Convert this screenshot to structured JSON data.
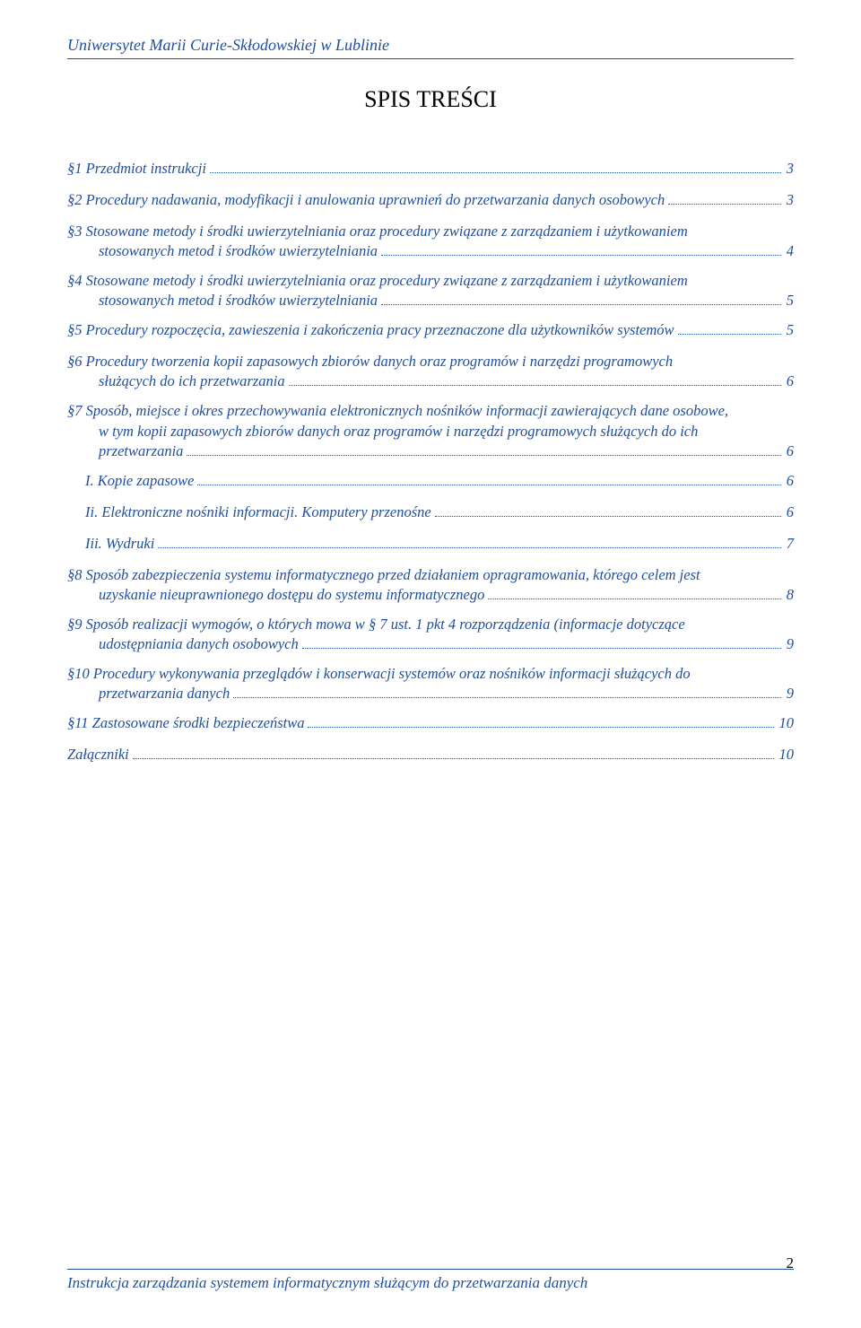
{
  "header": "Uniwersytet Marii Curie-Skłodowskiej w Lublinie",
  "title": "SPIS TREŚCI",
  "footer_text": "Instrukcja zarządzania systemem informatycznym służącym do przetwarzania danych",
  "page_number": "2",
  "colors": {
    "link": "#1f4e9c",
    "text": "#000000",
    "background": "#ffffff"
  },
  "toc": [
    {
      "level": 1,
      "text": "§1  Przedmiot instrukcji",
      "page": "3"
    },
    {
      "level": 1,
      "text": "§2  Procedury nadawania, modyfikacji i anulowania uprawnień do  przetwarzania danych osobowych",
      "page": "3"
    },
    {
      "level": 1,
      "multiline": true,
      "lines": [
        "§3  Stosowane metody i środki uwierzytelniania oraz procedury związane z zarządzaniem i użytkowaniem",
        "stosowanych metod i środków uwierzytelniania"
      ],
      "page": "4",
      "indent2": true
    },
    {
      "level": 1,
      "multiline": true,
      "lines": [
        "§4  Stosowane metody i środki uwierzytelniania oraz procedury związane z zarządzaniem i użytkowaniem",
        "stosowanych metod i środków uwierzytelniania"
      ],
      "page": "5",
      "indent2": true
    },
    {
      "level": 1,
      "text": "§5  Procedury rozpoczęcia, zawieszenia i zakończenia pracy przeznaczone dla użytkowników systemów",
      "page": "5"
    },
    {
      "level": 1,
      "multiline": true,
      "lines": [
        "§6  Procedury tworzenia kopii zapasowych zbiorów danych oraz programów i narzędzi programowych",
        "służących do ich przetwarzania"
      ],
      "page": "6",
      "indent2": true
    },
    {
      "level": 1,
      "multiline": true,
      "lines": [
        "§7  Sposób, miejsce i okres przechowywania elektronicznych nośników informacji zawierających dane osobowe,",
        "w tym kopii zapasowych zbiorów danych oraz programów i narzędzi programowych służących do ich",
        "przetwarzania"
      ],
      "page": "6",
      "indent2": true
    },
    {
      "level": 2,
      "text": "I.   Kopie zapasowe",
      "page": "6"
    },
    {
      "level": 2,
      "text": "Ii.   Elektroniczne nośniki informacji. Komputery przenośne",
      "page": "6"
    },
    {
      "level": 2,
      "text": "Iii.   Wydruki",
      "page": "7"
    },
    {
      "level": 1,
      "multiline": true,
      "lines": [
        "§8  Sposób zabezpieczenia systemu informatycznego przed działaniem opragramowania, którego celem jest",
        "uzyskanie nieuprawnionego dostępu do systemu informatycznego"
      ],
      "page": "8",
      "indent2": true
    },
    {
      "level": 1,
      "multiline": true,
      "lines": [
        "§9  Sposób realizacji wymogów, o których mowa w § 7 ust. 1 pkt 4 rozporządzenia (informacje dotyczące",
        "udostępniania danych osobowych"
      ],
      "page": "9",
      "indent2": true
    },
    {
      "level": 1,
      "multiline": true,
      "lines": [
        "§10 Procedury wykonywania przeglądów i konserwacji systemów oraz nośników informacji służących do",
        "przetwarzania danych"
      ],
      "page": "9",
      "indent2": true
    },
    {
      "level": 1,
      "text": "§11 Zastosowane środki bezpieczeństwa",
      "page": "10"
    },
    {
      "level": 1,
      "text": "Załączniki ",
      "page": "10"
    }
  ]
}
